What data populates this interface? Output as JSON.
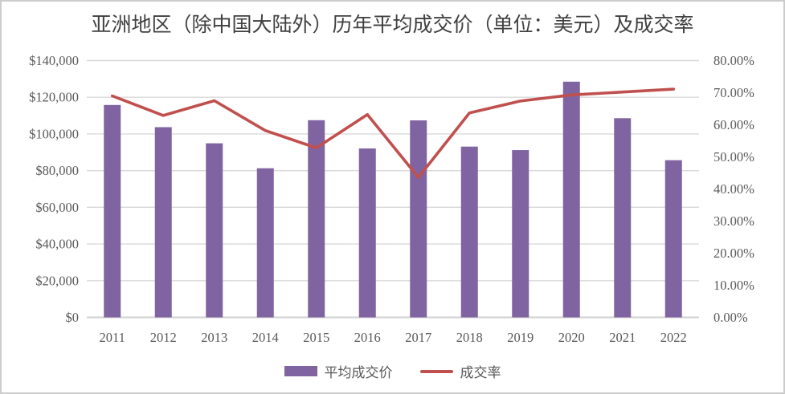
{
  "title": "亚洲地区（除中国大陆外）历年平均成交价（单位：美元）及成交率",
  "colors": {
    "bar": "#8064A2",
    "line": "#C0504D",
    "grid": "#D9D9D9",
    "baseline": "#D0D0D0",
    "axis_text": "#595959",
    "title_text": "#404040",
    "background": "#FFFFFF",
    "frame_border": "#CCCCCC"
  },
  "legend": [
    {
      "label": "平均成交价",
      "swatch": "purple-bar"
    },
    {
      "label": "成交率",
      "swatch": "red-line"
    }
  ],
  "chart_data": {
    "type": "combo_bar_line",
    "title": "亚洲地区（除中国大陆外）历年平均成交价（单位：美元）及成交率",
    "categories": [
      "2011",
      "2012",
      "2013",
      "2014",
      "2015",
      "2016",
      "2017",
      "2018",
      "2019",
      "2020",
      "2021",
      "2022"
    ],
    "series": [
      {
        "name": "平均成交价",
        "type": "bar",
        "axis": "left",
        "values": [
          115800,
          103700,
          94900,
          81300,
          107500,
          92100,
          107400,
          93100,
          91200,
          128500,
          108600,
          85700
        ]
      },
      {
        "name": "成交率",
        "type": "line",
        "axis": "right",
        "values": [
          69.0,
          62.9,
          67.5,
          58.2,
          52.8,
          63.2,
          43.6,
          63.7,
          67.4,
          69.3,
          70.2,
          71.1
        ]
      }
    ],
    "left_axis": {
      "min": 0,
      "max": 140000,
      "step": 20000,
      "tick_labels": [
        "$0",
        "$20,000",
        "$40,000",
        "$60,000",
        "$80,000",
        "$100,000",
        "$120,000",
        "$140,000"
      ]
    },
    "right_axis": {
      "min": 0,
      "max": 80,
      "step": 10,
      "tick_labels": [
        "0.00%",
        "10.00%",
        "20.00%",
        "30.00%",
        "40.00%",
        "50.00%",
        "60.00%",
        "70.00%",
        "80.00%"
      ]
    },
    "grid": "horizontal",
    "legend_position": "bottom",
    "xlabel": "",
    "ylabel_left": "",
    "ylabel_right": ""
  }
}
